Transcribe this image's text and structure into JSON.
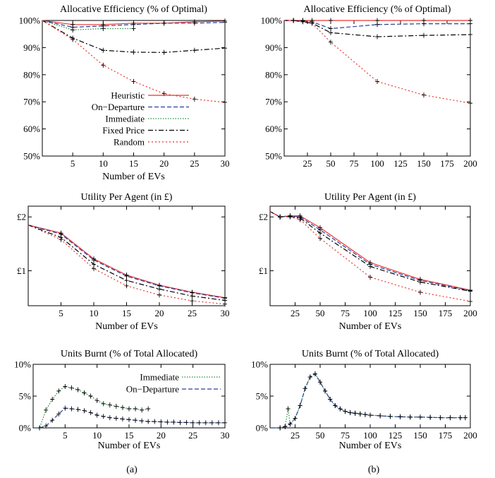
{
  "captions": [
    "(a)",
    "(b)"
  ],
  "chart_data": [
    {
      "type": "line",
      "title": "Allocative Efficiency (% of Optimal)",
      "xlabel": "Number of EVs",
      "ylabel": "",
      "xlim": [
        0,
        30
      ],
      "ylim": [
        50,
        100
      ],
      "xticks": [
        5,
        10,
        15,
        20,
        25,
        30
      ],
      "xtick_labels": [
        "5",
        "10",
        "15",
        "20",
        "25",
        "30"
      ],
      "yticks": [
        50,
        60,
        70,
        80,
        90,
        100
      ],
      "ytick_labels": [
        "50%",
        "60%",
        "70%",
        "80%",
        "90%",
        "100%"
      ],
      "legend": "bottom-left",
      "show_legend": true,
      "series": [
        {
          "name": "Heuristic",
          "color": "#e8352e",
          "dash": "",
          "x": [
            0,
            5,
            10,
            15,
            20,
            25,
            30
          ],
          "y": [
            100,
            98.5,
            98.5,
            99,
            99,
            99.5,
            99.8
          ]
        },
        {
          "name": "On−Departure",
          "color": "#2b3f9c",
          "dash": "6,3",
          "x": [
            0,
            5,
            10,
            15,
            20,
            25,
            30
          ],
          "y": [
            100,
            97.5,
            98,
            98.5,
            99,
            99,
            99.3
          ]
        },
        {
          "name": "Immediate",
          "color": "#1b8a3a",
          "dash": "1.5,2",
          "x": [
            0,
            5,
            10,
            15
          ],
          "y": [
            100,
            96.5,
            97,
            97
          ]
        },
        {
          "name": "Fixed Price",
          "color": "#000000",
          "dash": "7,3,2,3",
          "x": [
            0,
            5,
            10,
            15,
            20,
            25,
            30
          ],
          "y": [
            100,
            93.5,
            89,
            88.3,
            88.2,
            89,
            89.8
          ]
        },
        {
          "name": "Random",
          "color": "#e8352e",
          "dash": "2,3",
          "x": [
            0,
            5,
            10,
            15,
            20,
            25,
            30
          ],
          "y": [
            100,
            93,
            83.5,
            77.5,
            73,
            71,
            69.8
          ]
        }
      ]
    },
    {
      "type": "line",
      "title": "Allocative Efficiency (% of Optimal)",
      "xlabel": "",
      "ylabel": "",
      "xlim": [
        0,
        200
      ],
      "ylim": [
        50,
        100
      ],
      "xticks": [
        25,
        50,
        75,
        100,
        125,
        150,
        175,
        200
      ],
      "xtick_labels": [
        "25",
        "50",
        "75",
        "100",
        "125",
        "150",
        "175",
        "200"
      ],
      "yticks": [
        50,
        60,
        70,
        80,
        90,
        100
      ],
      "ytick_labels": [
        "50%",
        "60%",
        "70%",
        "80%",
        "90%",
        "100%"
      ],
      "show_legend": false,
      "series": [
        {
          "name": "Heuristic",
          "color": "#e8352e",
          "dash": "",
          "x": [
            0,
            10,
            20,
            30,
            50,
            100,
            150,
            200
          ],
          "y": [
            100,
            100,
            100,
            100,
            100,
            100,
            100,
            100
          ]
        },
        {
          "name": "On−Departure",
          "color": "#2b3f9c",
          "dash": "6,3",
          "x": [
            0,
            10,
            20,
            30,
            50,
            100,
            150,
            200
          ],
          "y": [
            100,
            100,
            99.8,
            99.5,
            97,
            98.5,
            98.8,
            98.8
          ]
        },
        {
          "name": "Fixed Price",
          "color": "#000000",
          "dash": "7,3,2,3",
          "x": [
            0,
            10,
            20,
            30,
            50,
            100,
            150,
            200
          ],
          "y": [
            100,
            100,
            99.5,
            99,
            95.5,
            94,
            94.5,
            94.8
          ]
        },
        {
          "name": "Random",
          "color": "#e8352e",
          "dash": "2,3",
          "x": [
            0,
            10,
            20,
            30,
            50,
            100,
            150,
            200
          ],
          "y": [
            100,
            100,
            100,
            99,
            92,
            77.5,
            72.5,
            69.5
          ]
        }
      ]
    },
    {
      "type": "line",
      "title": "Utility Per Agent (in £)",
      "xlabel": "Number of EVs",
      "ylabel": "",
      "xlim": [
        0,
        30
      ],
      "ylim": [
        0.35,
        2.2
      ],
      "xticks": [
        5,
        10,
        15,
        20,
        25,
        30
      ],
      "xtick_labels": [
        "5",
        "10",
        "15",
        "20",
        "25",
        "30"
      ],
      "yticks": [
        1,
        2
      ],
      "ytick_labels": [
        "£1",
        "£2"
      ],
      "show_legend": false,
      "series": [
        {
          "name": "Heuristic",
          "color": "#e8352e",
          "dash": "",
          "x": [
            0,
            5,
            10,
            15,
            20,
            25,
            30
          ],
          "y": [
            1.85,
            1.7,
            1.22,
            0.92,
            0.73,
            0.6,
            0.5
          ]
        },
        {
          "name": "On−Departure",
          "color": "#2b3f9c",
          "dash": "6,3",
          "x": [
            0,
            5,
            10,
            15,
            20,
            25,
            30
          ],
          "y": [
            1.85,
            1.68,
            1.2,
            0.9,
            0.72,
            0.59,
            0.49
          ]
        },
        {
          "name": "Fixed Price",
          "color": "#000000",
          "dash": "7,3,2,3",
          "x": [
            0,
            5,
            10,
            15,
            20,
            25,
            30
          ],
          "y": [
            1.85,
            1.62,
            1.12,
            0.82,
            0.66,
            0.53,
            0.45
          ]
        },
        {
          "name": "Random",
          "color": "#e8352e",
          "dash": "2,3",
          "x": [
            0,
            5,
            10,
            15,
            20,
            25,
            30
          ],
          "y": [
            1.85,
            1.58,
            1.04,
            0.72,
            0.55,
            0.44,
            0.38
          ]
        }
      ]
    },
    {
      "type": "line",
      "title": "Utility Per Agent (in £)",
      "xlabel": "Number of EVs",
      "ylabel": "",
      "xlim": [
        0,
        200
      ],
      "ylim": [
        0.35,
        2.2
      ],
      "xticks": [
        25,
        50,
        75,
        100,
        125,
        150,
        175,
        200
      ],
      "xtick_labels": [
        "25",
        "50",
        "75",
        "100",
        "125",
        "150",
        "175",
        "200"
      ],
      "yticks": [
        1,
        2
      ],
      "ytick_labels": [
        "£1",
        "£2"
      ],
      "show_legend": false,
      "series": [
        {
          "name": "Heuristic",
          "color": "#e8352e",
          "dash": "",
          "x": [
            0,
            10,
            20,
            30,
            50,
            100,
            150,
            200
          ],
          "y": [
            2.1,
            2.0,
            2.02,
            2.02,
            1.8,
            1.15,
            0.84,
            0.64
          ]
        },
        {
          "name": "On−Departure",
          "color": "#2b3f9c",
          "dash": "6,3",
          "x": [
            0,
            10,
            20,
            30,
            50,
            100,
            150,
            200
          ],
          "y": [
            2.1,
            2.0,
            2.02,
            2.0,
            1.76,
            1.12,
            0.82,
            0.63
          ]
        },
        {
          "name": "Fixed Price",
          "color": "#000000",
          "dash": "7,3,2,3",
          "x": [
            0,
            10,
            20,
            30,
            50,
            100,
            150,
            200
          ],
          "y": [
            2.1,
            2.0,
            2.01,
            1.98,
            1.7,
            1.08,
            0.79,
            0.62
          ]
        },
        {
          "name": "Random",
          "color": "#e8352e",
          "dash": "2,3",
          "x": [
            0,
            10,
            20,
            30,
            50,
            100,
            150,
            200
          ],
          "y": [
            2.1,
            2.0,
            2.0,
            1.95,
            1.6,
            0.88,
            0.6,
            0.43
          ]
        }
      ]
    },
    {
      "type": "line",
      "title": "Units Burnt (% of Total Allocated)",
      "xlabel": "Number of EVs",
      "ylabel": "",
      "xlim": [
        0,
        30
      ],
      "ylim": [
        0,
        10
      ],
      "xticks": [
        5,
        10,
        15,
        20,
        25,
        30
      ],
      "xtick_labels": [
        "5",
        "10",
        "15",
        "20",
        "25",
        "30"
      ],
      "yticks": [
        0,
        5,
        10
      ],
      "ytick_labels": [
        "0%",
        "5%",
        "10%"
      ],
      "legend": "top-right",
      "show_legend": true,
      "series": [
        {
          "name": "Immediate",
          "color": "#1b8a3a",
          "dash": "1.5,2",
          "x": [
            0,
            1,
            2,
            3,
            4,
            5,
            6,
            7,
            8,
            9,
            10,
            11,
            12,
            13,
            14,
            15,
            16,
            17,
            18
          ],
          "y": [
            0,
            0,
            2.8,
            4.5,
            5.8,
            6.5,
            6.3,
            6,
            5.5,
            5,
            4.3,
            3.8,
            3.6,
            3.4,
            3.2,
            3.0,
            3.0,
            2.8,
            3.0
          ]
        },
        {
          "name": "On−Departure",
          "color": "#2b3f9c",
          "dash": "6,3",
          "x": [
            0,
            1,
            2,
            3,
            4,
            5,
            6,
            7,
            8,
            9,
            10,
            11,
            12,
            13,
            14,
            15,
            16,
            17,
            18,
            19,
            20,
            21,
            22,
            23,
            24,
            25,
            26,
            27,
            28,
            29,
            30
          ],
          "y": [
            0,
            0,
            0.3,
            1.2,
            2.2,
            3.1,
            3.0,
            2.9,
            2.7,
            2.4,
            2.0,
            1.8,
            1.6,
            1.5,
            1.4,
            1.3,
            1.2,
            1.1,
            1.0,
            1.0,
            0.95,
            0.9,
            0.9,
            0.85,
            0.85,
            0.8,
            0.8,
            0.8,
            0.8,
            0.8,
            0.8
          ]
        }
      ]
    },
    {
      "type": "line",
      "title": "Units Burnt (% of Total Allocated)",
      "xlabel": "Number of EVs",
      "ylabel": "",
      "xlim": [
        0,
        200
      ],
      "ylim": [
        0,
        10
      ],
      "xticks": [
        25,
        50,
        75,
        100,
        125,
        150,
        175,
        200
      ],
      "xtick_labels": [
        "25",
        "50",
        "75",
        "100",
        "125",
        "150",
        "175",
        "200"
      ],
      "yticks": [
        0,
        5,
        10
      ],
      "ytick_labels": [
        "0%",
        "5%",
        "10%"
      ],
      "show_legend": false,
      "series": [
        {
          "name": "Immediate",
          "color": "#1b8a3a",
          "dash": "1.5,2",
          "x": [
            0,
            10,
            15,
            18,
            20,
            25,
            30,
            35,
            40,
            45,
            50,
            55,
            60,
            65,
            70,
            75,
            80,
            85,
            90,
            95,
            100,
            110,
            120,
            130,
            140,
            150,
            160,
            170,
            180,
            190,
            195
          ],
          "y": [
            0,
            0,
            0.2,
            3,
            0.6,
            1.5,
            3.5,
            6.2,
            8,
            8.5,
            7.2,
            5.8,
            4.5,
            3.5,
            3,
            2.6,
            2.4,
            2.3,
            2.2,
            2.1,
            2.0,
            1.9,
            1.8,
            1.75,
            1.7,
            1.7,
            1.65,
            1.6,
            1.6,
            1.6,
            1.6
          ]
        },
        {
          "name": "On−Departure",
          "color": "#2b3f9c",
          "dash": "6,3",
          "x": [
            0,
            10,
            15,
            20,
            25,
            30,
            35,
            40,
            45,
            50,
            55,
            60,
            65,
            70,
            75,
            80,
            85,
            90,
            95,
            100,
            110,
            120,
            130,
            140,
            150,
            160,
            170,
            180,
            190,
            195
          ],
          "y": [
            0,
            0,
            0.2,
            0.6,
            1.5,
            3.5,
            6.2,
            8,
            8.5,
            7.2,
            5.8,
            4.5,
            3.5,
            3,
            2.6,
            2.4,
            2.3,
            2.2,
            2.1,
            2.0,
            1.9,
            1.8,
            1.75,
            1.7,
            1.7,
            1.65,
            1.6,
            1.6,
            1.6,
            1.6
          ]
        }
      ]
    }
  ]
}
